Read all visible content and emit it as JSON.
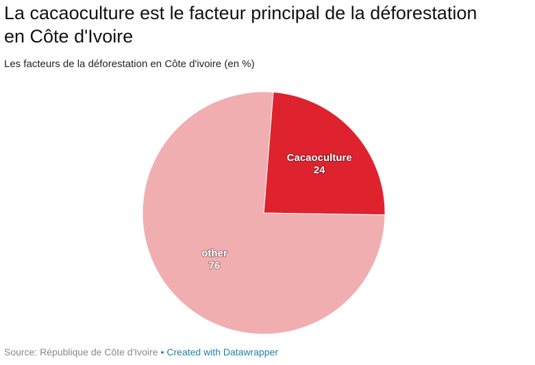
{
  "chart_data": {
    "type": "pie",
    "title": "La cacaoculture est le facteur principal de la déforestation en Côte d'Ivoire",
    "subtitle": "Les facteurs de la déforestation en Côte d'ivoire (en %)",
    "slices": [
      {
        "label": "Cacaoculture",
        "value": 24,
        "color": "#de232f"
      },
      {
        "label": "other",
        "value": 76,
        "color": "#f1aeb1"
      }
    ]
  },
  "footer": {
    "source": "Source: République de Côte d'Ivoire",
    "separator": "•",
    "credit": "Created with Datawrapper"
  }
}
